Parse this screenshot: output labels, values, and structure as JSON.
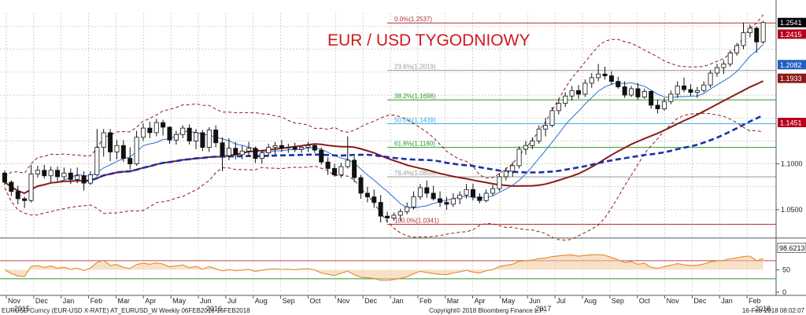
{
  "chart_data": {
    "type": "candlestick",
    "title": "EUR / USD TYGODNIOWY",
    "ylim": [
      1.02,
      1.265
    ],
    "y_ticks": [
      1.05,
      1.1
    ],
    "y_tick_labels": [
      "1.0500",
      "1.1000"
    ],
    "x_month_labels": [
      "Nov",
      "Dec",
      "Jan",
      "Feb",
      "Mar",
      "Apr",
      "May",
      "Jun",
      "Jul",
      "Aug",
      "Sep",
      "Oct",
      "Nov",
      "Dec",
      "Jan",
      "Feb",
      "Mar",
      "Apr",
      "May",
      "Jun",
      "Jul",
      "Aug",
      "Sep",
      "Oct",
      "Nov",
      "Dec",
      "Jan",
      "Feb"
    ],
    "x_year_labels": [
      {
        "label": "2015",
        "month_index": 0
      },
      {
        "label": "2016",
        "month_index": 7
      },
      {
        "label": "2017",
        "month_index": 19
      },
      {
        "label": "2018",
        "month_index": 27
      }
    ],
    "fibonacci": [
      {
        "label": "0.0%(1.2537)",
        "value": 1.2537,
        "color": "#b03030"
      },
      {
        "label": "23.6%(1.2019)",
        "value": 1.2019,
        "color": "#999999"
      },
      {
        "label": "38.2%(1.1698)",
        "value": 1.1698,
        "color": "#2a9a2a"
      },
      {
        "label": "50.0%(1.1439)",
        "value": 1.1439,
        "color": "#33aadd"
      },
      {
        "label": "61.8%(1.1180)",
        "value": 1.118,
        "color": "#2a9a2a"
      },
      {
        "label": "76.4%(1.0859)",
        "value": 1.0859,
        "color": "#999999"
      },
      {
        "label": "100.0%(1.0341)",
        "value": 1.0341,
        "color": "#b03030"
      }
    ],
    "price_tags": [
      {
        "label": "1.2541",
        "value": 1.2541,
        "bg": "#000000",
        "fg": "#ffffff"
      },
      {
        "label": "1.2415",
        "value": 1.2415,
        "bg": "#b8001c",
        "fg": "#ffffff"
      },
      {
        "label": "1.2082",
        "value": 1.2082,
        "bg": "#1e5fbf",
        "fg": "#ffffff"
      },
      {
        "label": "1.1933",
        "value": 1.1933,
        "bg": "#8b1a1a",
        "fg": "#ffffff"
      },
      {
        "label": "1.1451",
        "value": 1.1451,
        "bg": "#b8001c",
        "fg": "#ffffff"
      }
    ],
    "candles": [
      {
        "o": 1.09,
        "h": 1.093,
        "l": 1.077,
        "c": 1.08
      },
      {
        "o": 1.08,
        "h": 1.082,
        "l": 1.065,
        "c": 1.07
      },
      {
        "o": 1.07,
        "h": 1.076,
        "l": 1.056,
        "c": 1.062
      },
      {
        "o": 1.062,
        "h": 1.064,
        "l": 1.052,
        "c": 1.06
      },
      {
        "o": 1.06,
        "h": 1.099,
        "l": 1.058,
        "c": 1.089
      },
      {
        "o": 1.089,
        "h": 1.098,
        "l": 1.085,
        "c": 1.093
      },
      {
        "o": 1.093,
        "h": 1.099,
        "l": 1.084,
        "c": 1.087
      },
      {
        "o": 1.087,
        "h": 1.097,
        "l": 1.08,
        "c": 1.093
      },
      {
        "o": 1.093,
        "h": 1.097,
        "l": 1.081,
        "c": 1.086
      },
      {
        "o": 1.086,
        "h": 1.096,
        "l": 1.083,
        "c": 1.09
      },
      {
        "o": 1.09,
        "h": 1.095,
        "l": 1.078,
        "c": 1.083
      },
      {
        "o": 1.083,
        "h": 1.096,
        "l": 1.079,
        "c": 1.087
      },
      {
        "o": 1.087,
        "h": 1.092,
        "l": 1.071,
        "c": 1.079
      },
      {
        "o": 1.079,
        "h": 1.092,
        "l": 1.077,
        "c": 1.088
      },
      {
        "o": 1.088,
        "h": 1.138,
        "l": 1.086,
        "c": 1.118
      },
      {
        "o": 1.118,
        "h": 1.138,
        "l": 1.108,
        "c": 1.134
      },
      {
        "o": 1.134,
        "h": 1.138,
        "l": 1.103,
        "c": 1.113
      },
      {
        "o": 1.113,
        "h": 1.126,
        "l": 1.105,
        "c": 1.12
      },
      {
        "o": 1.12,
        "h": 1.126,
        "l": 1.102,
        "c": 1.106
      },
      {
        "o": 1.106,
        "h": 1.118,
        "l": 1.094,
        "c": 1.1
      },
      {
        "o": 1.1,
        "h": 1.136,
        "l": 1.098,
        "c": 1.129
      },
      {
        "o": 1.129,
        "h": 1.144,
        "l": 1.125,
        "c": 1.139
      },
      {
        "o": 1.139,
        "h": 1.146,
        "l": 1.128,
        "c": 1.134
      },
      {
        "o": 1.134,
        "h": 1.149,
        "l": 1.13,
        "c": 1.145
      },
      {
        "o": 1.145,
        "h": 1.148,
        "l": 1.131,
        "c": 1.14
      },
      {
        "o": 1.14,
        "h": 1.141,
        "l": 1.122,
        "c": 1.126
      },
      {
        "o": 1.126,
        "h": 1.136,
        "l": 1.121,
        "c": 1.132
      },
      {
        "o": 1.132,
        "h": 1.142,
        "l": 1.128,
        "c": 1.139
      },
      {
        "o": 1.139,
        "h": 1.143,
        "l": 1.121,
        "c": 1.125
      },
      {
        "o": 1.125,
        "h": 1.138,
        "l": 1.116,
        "c": 1.134
      },
      {
        "o": 1.134,
        "h": 1.137,
        "l": 1.114,
        "c": 1.118
      },
      {
        "o": 1.118,
        "h": 1.14,
        "l": 1.113,
        "c": 1.137
      },
      {
        "o": 1.137,
        "h": 1.142,
        "l": 1.118,
        "c": 1.123
      },
      {
        "o": 1.123,
        "h": 1.129,
        "l": 1.092,
        "c": 1.109
      },
      {
        "o": 1.109,
        "h": 1.128,
        "l": 1.104,
        "c": 1.117
      },
      {
        "o": 1.117,
        "h": 1.124,
        "l": 1.105,
        "c": 1.11
      },
      {
        "o": 1.11,
        "h": 1.12,
        "l": 1.105,
        "c": 1.114
      },
      {
        "o": 1.114,
        "h": 1.124,
        "l": 1.108,
        "c": 1.117
      },
      {
        "o": 1.117,
        "h": 1.119,
        "l": 1.101,
        "c": 1.106
      },
      {
        "o": 1.106,
        "h": 1.115,
        "l": 1.1,
        "c": 1.112
      },
      {
        "o": 1.112,
        "h": 1.122,
        "l": 1.108,
        "c": 1.118
      },
      {
        "o": 1.118,
        "h": 1.124,
        "l": 1.11,
        "c": 1.12
      },
      {
        "o": 1.12,
        "h": 1.126,
        "l": 1.113,
        "c": 1.117
      },
      {
        "o": 1.117,
        "h": 1.122,
        "l": 1.112,
        "c": 1.118
      },
      {
        "o": 1.118,
        "h": 1.123,
        "l": 1.113,
        "c": 1.116
      },
      {
        "o": 1.116,
        "h": 1.12,
        "l": 1.112,
        "c": 1.118
      },
      {
        "o": 1.118,
        "h": 1.124,
        "l": 1.113,
        "c": 1.12
      },
      {
        "o": 1.12,
        "h": 1.122,
        "l": 1.112,
        "c": 1.115
      },
      {
        "o": 1.115,
        "h": 1.118,
        "l": 1.099,
        "c": 1.102
      },
      {
        "o": 1.102,
        "h": 1.107,
        "l": 1.088,
        "c": 1.095
      },
      {
        "o": 1.095,
        "h": 1.1,
        "l": 1.086,
        "c": 1.088
      },
      {
        "o": 1.088,
        "h": 1.101,
        "l": 1.085,
        "c": 1.097
      },
      {
        "o": 1.097,
        "h": 1.13,
        "l": 1.095,
        "c": 1.104
      },
      {
        "o": 1.104,
        "h": 1.108,
        "l": 1.08,
        "c": 1.085
      },
      {
        "o": 1.085,
        "h": 1.088,
        "l": 1.062,
        "c": 1.068
      },
      {
        "o": 1.068,
        "h": 1.075,
        "l": 1.058,
        "c": 1.064
      },
      {
        "o": 1.064,
        "h": 1.072,
        "l": 1.052,
        "c": 1.058
      },
      {
        "o": 1.058,
        "h": 1.066,
        "l": 1.036,
        "c": 1.043
      },
      {
        "o": 1.043,
        "h": 1.048,
        "l": 1.036,
        "c": 1.041
      },
      {
        "o": 1.041,
        "h": 1.047,
        "l": 1.038,
        "c": 1.044
      },
      {
        "o": 1.044,
        "h": 1.051,
        "l": 1.038,
        "c": 1.048
      },
      {
        "o": 1.048,
        "h": 1.058,
        "l": 1.045,
        "c": 1.053
      },
      {
        "o": 1.053,
        "h": 1.07,
        "l": 1.05,
        "c": 1.064
      },
      {
        "o": 1.064,
        "h": 1.078,
        "l": 1.061,
        "c": 1.074
      },
      {
        "o": 1.074,
        "h": 1.082,
        "l": 1.063,
        "c": 1.068
      },
      {
        "o": 1.068,
        "h": 1.076,
        "l": 1.06,
        "c": 1.062
      },
      {
        "o": 1.062,
        "h": 1.07,
        "l": 1.053,
        "c": 1.058
      },
      {
        "o": 1.058,
        "h": 1.064,
        "l": 1.05,
        "c": 1.056
      },
      {
        "o": 1.056,
        "h": 1.068,
        "l": 1.053,
        "c": 1.062
      },
      {
        "o": 1.062,
        "h": 1.07,
        "l": 1.056,
        "c": 1.066
      },
      {
        "o": 1.066,
        "h": 1.078,
        "l": 1.062,
        "c": 1.072
      },
      {
        "o": 1.072,
        "h": 1.078,
        "l": 1.06,
        "c": 1.064
      },
      {
        "o": 1.064,
        "h": 1.068,
        "l": 1.057,
        "c": 1.06
      },
      {
        "o": 1.06,
        "h": 1.072,
        "l": 1.058,
        "c": 1.068
      },
      {
        "o": 1.068,
        "h": 1.077,
        "l": 1.065,
        "c": 1.073
      },
      {
        "o": 1.073,
        "h": 1.09,
        "l": 1.07,
        "c": 1.086
      },
      {
        "o": 1.086,
        "h": 1.096,
        "l": 1.082,
        "c": 1.092
      },
      {
        "o": 1.092,
        "h": 1.102,
        "l": 1.086,
        "c": 1.098
      },
      {
        "o": 1.098,
        "h": 1.119,
        "l": 1.095,
        "c": 1.116
      },
      {
        "o": 1.116,
        "h": 1.125,
        "l": 1.11,
        "c": 1.12
      },
      {
        "o": 1.12,
        "h": 1.129,
        "l": 1.116,
        "c": 1.125
      },
      {
        "o": 1.125,
        "h": 1.142,
        "l": 1.122,
        "c": 1.138
      },
      {
        "o": 1.138,
        "h": 1.15,
        "l": 1.13,
        "c": 1.142
      },
      {
        "o": 1.142,
        "h": 1.162,
        "l": 1.14,
        "c": 1.158
      },
      {
        "o": 1.158,
        "h": 1.171,
        "l": 1.154,
        "c": 1.166
      },
      {
        "o": 1.166,
        "h": 1.178,
        "l": 1.162,
        "c": 1.174
      },
      {
        "o": 1.174,
        "h": 1.185,
        "l": 1.169,
        "c": 1.18
      },
      {
        "o": 1.18,
        "h": 1.186,
        "l": 1.171,
        "c": 1.176
      },
      {
        "o": 1.176,
        "h": 1.192,
        "l": 1.173,
        "c": 1.188
      },
      {
        "o": 1.188,
        "h": 1.199,
        "l": 1.183,
        "c": 1.194
      },
      {
        "o": 1.194,
        "h": 1.209,
        "l": 1.19,
        "c": 1.198
      },
      {
        "o": 1.198,
        "h": 1.206,
        "l": 1.192,
        "c": 1.196
      },
      {
        "o": 1.196,
        "h": 1.201,
        "l": 1.186,
        "c": 1.19
      },
      {
        "o": 1.19,
        "h": 1.195,
        "l": 1.182,
        "c": 1.184
      },
      {
        "o": 1.184,
        "h": 1.19,
        "l": 1.172,
        "c": 1.175
      },
      {
        "o": 1.175,
        "h": 1.185,
        "l": 1.173,
        "c": 1.182
      },
      {
        "o": 1.182,
        "h": 1.188,
        "l": 1.17,
        "c": 1.173
      },
      {
        "o": 1.173,
        "h": 1.182,
        "l": 1.171,
        "c": 1.179
      },
      {
        "o": 1.179,
        "h": 1.18,
        "l": 1.16,
        "c": 1.164
      },
      {
        "o": 1.164,
        "h": 1.17,
        "l": 1.155,
        "c": 1.16
      },
      {
        "o": 1.16,
        "h": 1.172,
        "l": 1.158,
        "c": 1.168
      },
      {
        "o": 1.168,
        "h": 1.18,
        "l": 1.165,
        "c": 1.176
      },
      {
        "o": 1.176,
        "h": 1.19,
        "l": 1.172,
        "c": 1.185
      },
      {
        "o": 1.185,
        "h": 1.194,
        "l": 1.178,
        "c": 1.181
      },
      {
        "o": 1.181,
        "h": 1.187,
        "l": 1.174,
        "c": 1.178
      },
      {
        "o": 1.178,
        "h": 1.184,
        "l": 1.172,
        "c": 1.18
      },
      {
        "o": 1.18,
        "h": 1.19,
        "l": 1.178,
        "c": 1.186
      },
      {
        "o": 1.186,
        "h": 1.202,
        "l": 1.183,
        "c": 1.199
      },
      {
        "o": 1.199,
        "h": 1.209,
        "l": 1.195,
        "c": 1.205
      },
      {
        "o": 1.205,
        "h": 1.213,
        "l": 1.198,
        "c": 1.209
      },
      {
        "o": 1.209,
        "h": 1.224,
        "l": 1.206,
        "c": 1.221
      },
      {
        "o": 1.221,
        "h": 1.232,
        "l": 1.218,
        "c": 1.229
      },
      {
        "o": 1.229,
        "h": 1.254,
        "l": 1.225,
        "c": 1.243
      },
      {
        "o": 1.243,
        "h": 1.252,
        "l": 1.238,
        "c": 1.248
      },
      {
        "o": 1.248,
        "h": 1.25,
        "l": 1.221,
        "c": 1.233
      },
      {
        "o": 1.233,
        "h": 1.256,
        "l": 1.231,
        "c": 1.2541
      }
    ],
    "oscillator": {
      "ylim": [
        0,
        110
      ],
      "y_tick_labels": [
        "50",
        "0"
      ],
      "last_value_label": "98.6213",
      "levels": [
        30,
        70
      ]
    }
  },
  "footer": {
    "left": "EURUSD Curncy (EUR-USD X-RATE) AT_EURUSD_W  Weekly 06FEB2016-16FEB2018",
    "center": "Copyright© 2018 Bloomberg Finance L.P.",
    "right": "16-Feb-2018 08:02:07"
  }
}
